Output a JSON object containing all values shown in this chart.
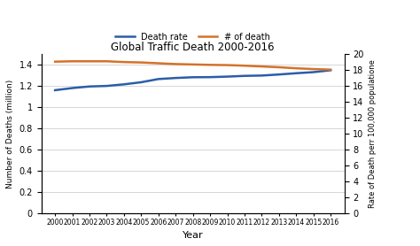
{
  "title": "Global Traffic Death 2000-2016",
  "years": [
    2000,
    2001,
    2002,
    2003,
    2004,
    2005,
    2006,
    2007,
    2008,
    2009,
    2010,
    2011,
    2012,
    2013,
    2014,
    2015,
    2016
  ],
  "death_count": [
    1.16,
    1.18,
    1.195,
    1.2,
    1.215,
    1.235,
    1.265,
    1.275,
    1.282,
    1.283,
    1.288,
    1.295,
    1.298,
    1.308,
    1.32,
    1.33,
    1.348
  ],
  "death_rate": [
    19.05,
    19.1,
    19.1,
    19.1,
    19.0,
    18.95,
    18.85,
    18.75,
    18.7,
    18.65,
    18.62,
    18.55,
    18.45,
    18.35,
    18.22,
    18.12,
    18.05
  ],
  "death_count_color": "#2b5da8",
  "death_rate_color": "#d4722a",
  "left_ylabel": "Number of Deaths (million)",
  "right_ylabel": "Rate of Death perr 100,000 populatione",
  "xlabel": "Year",
  "left_ylim": [
    0,
    1.5
  ],
  "right_ylim": [
    0,
    20
  ],
  "left_yticks": [
    0,
    0.2,
    0.4,
    0.6,
    0.8,
    1.0,
    1.2,
    1.4
  ],
  "right_yticks": [
    0,
    2,
    4,
    6,
    8,
    10,
    12,
    14,
    16,
    18,
    20
  ],
  "legend_labels": [
    "Death rate",
    "# of death"
  ],
  "background_color": "#ffffff",
  "grid_color": "#d0d0d0"
}
